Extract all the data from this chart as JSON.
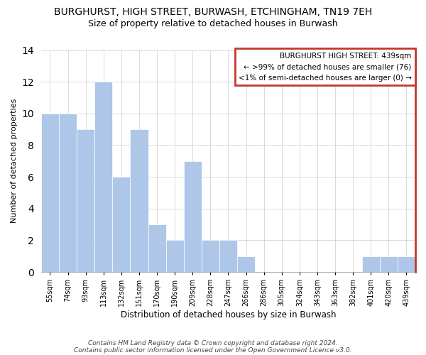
{
  "title": "BURGHURST, HIGH STREET, BURWASH, ETCHINGHAM, TN19 7EH",
  "subtitle": "Size of property relative to detached houses in Burwash",
  "xlabel": "Distribution of detached houses by size in Burwash",
  "ylabel": "Number of detached properties",
  "categories": [
    "55sqm",
    "74sqm",
    "93sqm",
    "113sqm",
    "132sqm",
    "151sqm",
    "170sqm",
    "190sqm",
    "209sqm",
    "228sqm",
    "247sqm",
    "266sqm",
    "286sqm",
    "305sqm",
    "324sqm",
    "343sqm",
    "363sqm",
    "382sqm",
    "401sqm",
    "420sqm",
    "439sqm"
  ],
  "values": [
    10,
    10,
    9,
    12,
    6,
    9,
    3,
    2,
    7,
    2,
    2,
    1,
    0,
    0,
    0,
    0,
    0,
    0,
    1,
    1,
    1
  ],
  "bar_color": "#aec6e8",
  "highlight_bar_index": 20,
  "highlight_bar_color": "#aec6e8",
  "ylim": [
    0,
    14
  ],
  "yticks": [
    0,
    2,
    4,
    6,
    8,
    10,
    12,
    14
  ],
  "legend_title": "BURGHURST HIGH STREET: 439sqm",
  "legend_line1": "← >99% of detached houses are smaller (76)",
  "legend_line2": "<1% of semi-detached houses are larger (0) →",
  "footnote1": "Contains HM Land Registry data © Crown copyright and database right 2024.",
  "footnote2": "Contains public sector information licensed under the Open Government Licence v3.0.",
  "title_fontsize": 10,
  "subtitle_fontsize": 9,
  "legend_box_facecolor": "#ffffff",
  "legend_border_color": "#c0392b",
  "right_border_color": "#c0392b"
}
